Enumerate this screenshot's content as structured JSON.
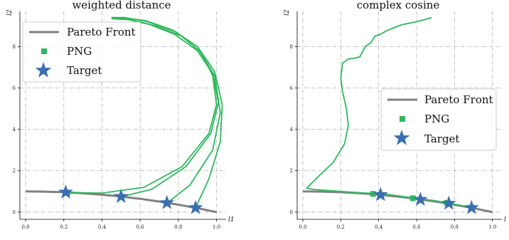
{
  "chart_data": [
    {
      "type": "line",
      "title": "weighted distance",
      "xlabel": "l1",
      "ylabel": "l2",
      "xlim": [
        -0.03,
        1.05
      ],
      "ylim": [
        -0.35,
        9.7
      ],
      "xticks": [
        "0.0",
        "0.2",
        "0.4",
        "0.6",
        "0.8",
        "1.0"
      ],
      "xtick_values": [
        0,
        0.2,
        0.4,
        0.6,
        0.8,
        1.0
      ],
      "yticks": [
        "0",
        "2",
        "4",
        "6",
        "8"
      ],
      "ytick_values": [
        0,
        2,
        4,
        6,
        8
      ],
      "grid": true,
      "legend_position": "top-left",
      "legend": [
        "Pareto Front",
        "PNG",
        "Target"
      ],
      "pareto_front": {
        "name": "Pareto Front",
        "color": "#808080",
        "x": [
          0,
          0.1,
          0.2,
          0.3,
          0.4,
          0.5,
          0.6,
          0.7,
          0.8,
          0.9,
          1.0
        ],
        "y": [
          1.0,
          0.99,
          0.96,
          0.91,
          0.84,
          0.75,
          0.64,
          0.51,
          0.36,
          0.19,
          0.0
        ]
      },
      "targets": {
        "name": "Target",
        "color": "#3a6fb0",
        "x": [
          0.21,
          0.5,
          0.74,
          0.89
        ],
        "y": [
          0.96,
          0.75,
          0.45,
          0.21
        ]
      },
      "png_points": {
        "name": "PNG",
        "color": "#2eb85c",
        "x": [
          0.22,
          0.5,
          0.74,
          0.89
        ],
        "y": [
          0.94,
          0.74,
          0.43,
          0.2
        ]
      },
      "png_trajectories": [
        {
          "x": [
            0.22,
            0.4,
            0.62,
            0.82,
            0.96,
            1.0,
            0.98,
            0.92,
            0.82,
            0.68,
            0.54,
            0.45
          ],
          "y": [
            0.94,
            0.92,
            1.2,
            2.2,
            3.8,
            5.2,
            6.6,
            7.7,
            8.5,
            9.0,
            9.3,
            9.35
          ]
        },
        {
          "x": [
            0.5,
            0.66,
            0.84,
            0.97,
            1.01,
            0.98,
            0.9,
            0.78,
            0.64,
            0.52,
            0.45
          ],
          "y": [
            0.74,
            1.1,
            2.2,
            3.8,
            5.3,
            6.7,
            7.8,
            8.6,
            9.1,
            9.35,
            9.4
          ]
        },
        {
          "x": [
            0.74,
            0.86,
            0.98,
            1.02,
            0.99,
            0.91,
            0.79,
            0.64,
            0.52,
            0.45
          ],
          "y": [
            0.43,
            1.3,
            3.0,
            4.8,
            6.6,
            7.8,
            8.7,
            9.2,
            9.4,
            9.4
          ]
        },
        {
          "x": [
            0.89,
            0.96,
            1.02,
            1.03,
            0.99,
            0.9,
            0.77,
            0.63,
            0.51,
            0.45
          ],
          "y": [
            0.2,
            1.6,
            3.4,
            5.2,
            6.8,
            8.0,
            8.8,
            9.25,
            9.4,
            9.38
          ]
        }
      ]
    },
    {
      "type": "line",
      "title": "complex cosine",
      "xlabel": "l",
      "ylabel": "l2",
      "xlim": [
        -0.03,
        1.05
      ],
      "ylim": [
        -0.35,
        9.7
      ],
      "xticks": [
        "0.0",
        "0.2",
        "0.4",
        "0.6",
        "0.8",
        "1.0"
      ],
      "xtick_values": [
        0,
        0.2,
        0.4,
        0.6,
        0.8,
        1.0
      ],
      "yticks": [
        "0",
        "2",
        "4",
        "6",
        "8"
      ],
      "ytick_values": [
        0,
        2,
        4,
        6,
        8
      ],
      "grid": true,
      "legend_position": "center-right",
      "legend": [
        "Pareto Front",
        "PNG",
        "Target"
      ],
      "pareto_front": {
        "name": "Pareto Front",
        "color": "#808080",
        "x": [
          0,
          0.1,
          0.2,
          0.3,
          0.4,
          0.5,
          0.6,
          0.7,
          0.8,
          0.9,
          1.0
        ],
        "y": [
          1.0,
          0.99,
          0.96,
          0.91,
          0.84,
          0.75,
          0.64,
          0.51,
          0.36,
          0.19,
          0.0
        ]
      },
      "targets": {
        "name": "Target",
        "color": "#3a6fb0",
        "x": [
          0.41,
          0.62,
          0.77,
          0.89
        ],
        "y": [
          0.84,
          0.61,
          0.42,
          0.21
        ]
      },
      "png_points": {
        "name": "PNG",
        "color": "#2eb85c",
        "x": [
          0.37,
          0.58,
          0.76,
          0.89
        ],
        "y": [
          0.88,
          0.67,
          0.45,
          0.22
        ]
      },
      "png_trajectories": [
        {
          "x": [
            0.89,
            0.7,
            0.45,
            0.2,
            0.05,
            0.02,
            0.08,
            0.16,
            0.22,
            0.24,
            0.23,
            0.21,
            0.2,
            0.21,
            0.24,
            0.28,
            0.3,
            0.33,
            0.36,
            0.38,
            0.41,
            0.45,
            0.52,
            0.6,
            0.66,
            0.68
          ],
          "y": [
            0.22,
            0.55,
            0.85,
            1.0,
            1.1,
            1.15,
            1.7,
            2.4,
            3.3,
            4.2,
            5.0,
            5.8,
            6.5,
            7.2,
            7.4,
            7.45,
            7.5,
            8.0,
            8.2,
            8.5,
            8.6,
            8.8,
            9.05,
            9.2,
            9.35,
            9.4
          ]
        }
      ]
    }
  ]
}
